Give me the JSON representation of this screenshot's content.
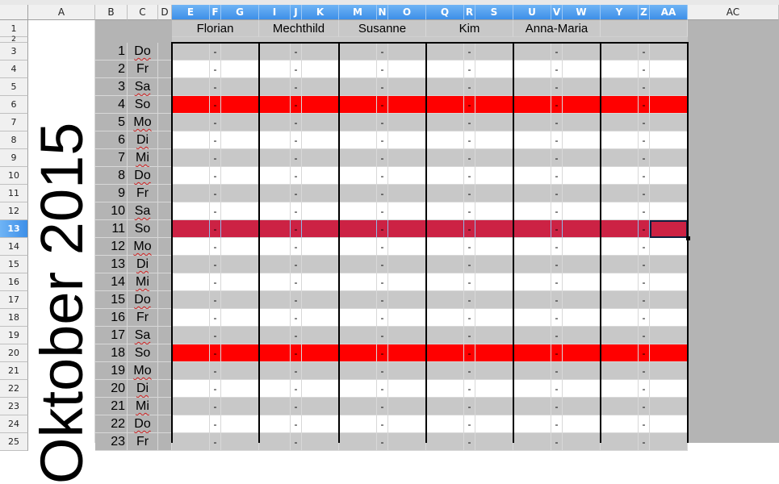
{
  "sheet": {
    "title": "Oktober 2015",
    "columns": [
      "A",
      "B",
      "C",
      "D",
      "E",
      "F",
      "G",
      "I",
      "J",
      "K",
      "M",
      "N",
      "O",
      "Q",
      "R",
      "S",
      "U",
      "V",
      "W",
      "Y",
      "Z",
      "AA",
      "AC"
    ],
    "selected_columns": [
      "E",
      "F",
      "G",
      "I",
      "J",
      "K",
      "M",
      "N",
      "O",
      "Q",
      "R",
      "S",
      "U",
      "V",
      "W",
      "Y",
      "Z",
      "AA"
    ],
    "selected_row": 13,
    "names": [
      "Florian",
      "Mechthild",
      "Susanne",
      "Kim",
      "Anna-Maria",
      ""
    ],
    "placeholder": "-",
    "days": [
      {
        "row": 3,
        "day": "1",
        "wd": "Do"
      },
      {
        "row": 4,
        "day": "2",
        "wd": "Fr"
      },
      {
        "row": 5,
        "day": "3",
        "wd": "Sa"
      },
      {
        "row": 6,
        "day": "4",
        "wd": "So"
      },
      {
        "row": 7,
        "day": "5",
        "wd": "Mo"
      },
      {
        "row": 8,
        "day": "6",
        "wd": "Di"
      },
      {
        "row": 9,
        "day": "7",
        "wd": "Mi"
      },
      {
        "row": 10,
        "day": "8",
        "wd": "Do"
      },
      {
        "row": 11,
        "day": "9",
        "wd": "Fr"
      },
      {
        "row": 12,
        "day": "10",
        "wd": "Sa"
      },
      {
        "row": 13,
        "day": "11",
        "wd": "So"
      },
      {
        "row": 14,
        "day": "12",
        "wd": "Mo"
      },
      {
        "row": 15,
        "day": "13",
        "wd": "Di"
      },
      {
        "row": 16,
        "day": "14",
        "wd": "Mi"
      },
      {
        "row": 17,
        "day": "15",
        "wd": "Do"
      },
      {
        "row": 18,
        "day": "16",
        "wd": "Fr"
      },
      {
        "row": 19,
        "day": "17",
        "wd": "Sa"
      },
      {
        "row": 20,
        "day": "18",
        "wd": "So"
      },
      {
        "row": 21,
        "day": "19",
        "wd": "Mo"
      },
      {
        "row": 22,
        "day": "20",
        "wd": "Di"
      },
      {
        "row": 23,
        "day": "21",
        "wd": "Mi"
      },
      {
        "row": 24,
        "day": "22",
        "wd": "Do"
      },
      {
        "row": 25,
        "day": "23",
        "wd": "Fr"
      }
    ],
    "colors": {
      "gray_row": "#c8c8c8",
      "white_row": "#ffffff",
      "sunday": "#ff0000",
      "sunday_selected": "#cc2244",
      "side": "#b4b4b4",
      "selection": "#3d8fe8"
    }
  }
}
